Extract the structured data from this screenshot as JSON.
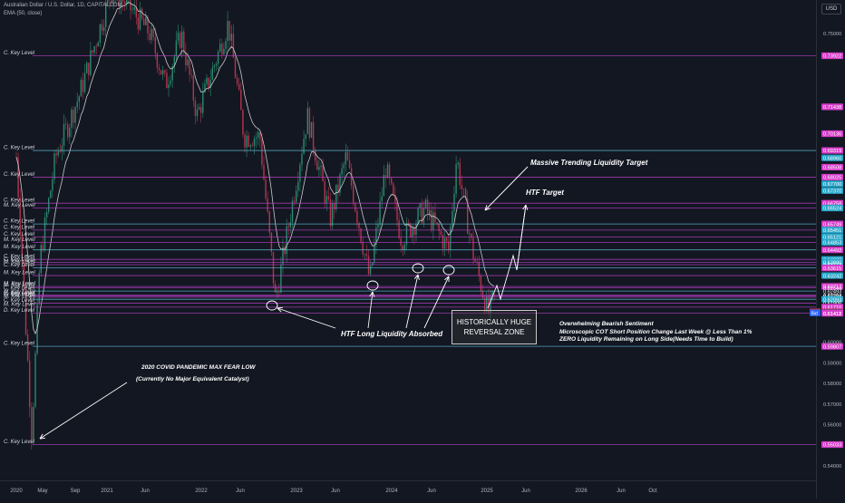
{
  "header": {
    "symbol": "Australian Dollar / U.S. Dollar, 1D, CAPITALCOM",
    "indicator": "EMA (50, close)",
    "currency_button": "USD"
  },
  "colors": {
    "background": "#131722",
    "level_line": "#b43ec2",
    "level_line_alt": "#5fb8d4",
    "bull_candle": "#2b8a6e",
    "bear_candle": "#b5344c",
    "ema": "#c9c9c9",
    "annotation": "#ffffff",
    "tag_pink": "#d63cc9",
    "tag_cyan": "#26a6c9",
    "ask": "#c2304a",
    "bid": "#2962ff"
  },
  "chart_data": {
    "type": "candlestick",
    "x_axis": {
      "ticks": [
        "2020",
        "May",
        "Sep",
        "2021",
        "Jun",
        "2022",
        "Jun",
        "2023",
        "Jun",
        "2024",
        "Jun",
        "2025",
        "Jun",
        "2026",
        "Jun",
        "Oct"
      ],
      "range": [
        "2020-01",
        "2026-10"
      ]
    },
    "y_axis": {
      "ticks": [
        "0.75000",
        "0.60000",
        "0.59000",
        "0.58000",
        "0.57000",
        "0.56000",
        "0.54000"
      ],
      "range": [
        0.535,
        0.765
      ]
    },
    "price_path": [
      [
        "2020-01",
        0.69
      ],
      [
        "2020-03",
        0.555
      ],
      [
        "2020-04",
        0.64
      ],
      [
        "2020-06",
        0.69
      ],
      [
        "2020-09",
        0.72
      ],
      [
        "2021-01",
        0.77
      ],
      [
        "2021-03",
        0.765
      ],
      [
        "2021-06",
        0.75
      ],
      [
        "2021-08",
        0.725
      ],
      [
        "2021-10",
        0.75
      ],
      [
        "2021-12",
        0.71
      ],
      [
        "2022-04",
        0.755
      ],
      [
        "2022-06",
        0.7
      ],
      [
        "2022-08",
        0.7
      ],
      [
        "2022-10",
        0.62
      ],
      [
        "2023-02",
        0.71
      ],
      [
        "2023-05",
        0.66
      ],
      [
        "2023-07",
        0.69
      ],
      [
        "2023-10",
        0.63
      ],
      [
        "2023-12",
        0.685
      ],
      [
        "2024-02",
        0.65
      ],
      [
        "2024-05",
        0.665
      ],
      [
        "2024-08",
        0.645
      ],
      [
        "2024-09",
        0.69
      ],
      [
        "2024-11",
        0.645
      ],
      [
        "2025-01",
        0.614
      ],
      [
        "2025-02",
        0.625
      ]
    ],
    "ema_period": 50,
    "key_levels": [
      {
        "label": "C. Key Level",
        "price": 0.73922
      },
      {
        "label": "C. Key Level",
        "price": 0.69319
      },
      {
        "label": "C. Key Level",
        "price": 0.68025
      },
      {
        "label": "C. Key Level",
        "price": 0.66758
      },
      {
        "label": "M. Key Level",
        "price": 0.66524
      },
      {
        "label": "C. Key Level",
        "price": 0.65749
      },
      {
        "label": "C. Key Level",
        "price": 0.65451
      },
      {
        "label": "C. Key Level",
        "price": 0.65121
      },
      {
        "label": "M. Key Level",
        "price": 0.64853
      },
      {
        "label": "M. Key Level",
        "price": 0.64492
      },
      {
        "label": "C. Key Level",
        "price": 0.6403
      },
      {
        "label": "C. Key Level",
        "price": 0.6389
      },
      {
        "label": "M. Key Level",
        "price": 0.63773
      },
      {
        "label": "C. Key Level",
        "price": 0.63615
      },
      {
        "label": "M. Key Level",
        "price": 0.63242
      },
      {
        "label": "M. Key Level",
        "price": 0.62717
      },
      {
        "label": "M. Key Level",
        "price": 0.62644
      },
      {
        "label": "C. Key Level",
        "price": 0.62493
      },
      {
        "label": "M. Key Level",
        "price": 0.62294
      },
      {
        "label": "C. Key Level",
        "price": 0.62263
      },
      {
        "label": "C. Key Level",
        "price": 0.62197
      },
      {
        "label": "M. Key Level",
        "price": 0.62093
      },
      {
        "label": "C. Key Level",
        "price": 0.61906
      },
      {
        "label": "M. Key Level",
        "price": 0.6171
      },
      {
        "label": "D. Key Level",
        "price": 0.61412
      },
      {
        "label": "C. Key Level",
        "price": 0.59807
      },
      {
        "label": "C. Key Level",
        "price": 0.55033
      }
    ],
    "price_tags": [
      {
        "text": "0.73922",
        "y": 0.73922,
        "bg": "pink"
      },
      {
        "text": "0.71438",
        "y": 0.71438,
        "bg": "pink"
      },
      {
        "text": "0.70136",
        "y": 0.70136,
        "bg": "pink"
      },
      {
        "text": "0.69319",
        "y": 0.69319,
        "bg": "pink"
      },
      {
        "text": "0.68960",
        "y": 0.6896,
        "bg": "cyan"
      },
      {
        "text": "0.68508",
        "y": 0.68508,
        "bg": "pink"
      },
      {
        "text": "0.68025",
        "y": 0.68025,
        "bg": "pink"
      },
      {
        "text": "0.67700",
        "y": 0.677,
        "bg": "cyan"
      },
      {
        "text": "0.67370",
        "y": 0.6737,
        "bg": "cyan"
      },
      {
        "text": "0.66758",
        "y": 0.66758,
        "bg": "pink"
      },
      {
        "text": "0.66524",
        "y": 0.66524,
        "bg": "cyan"
      },
      {
        "text": "0.65749",
        "y": 0.65749,
        "bg": "pink"
      },
      {
        "text": "0.65451",
        "y": 0.65451,
        "bg": "cyan"
      },
      {
        "text": "0.65121",
        "y": 0.65121,
        "bg": "cyan"
      },
      {
        "text": "0.64853",
        "y": 0.64853,
        "bg": "cyan"
      },
      {
        "text": "0.64492",
        "y": 0.64492,
        "bg": "pink"
      },
      {
        "text": "0.64030",
        "y": 0.6403,
        "bg": "cyan"
      },
      {
        "text": "0.63890",
        "y": 0.6389,
        "bg": "cyan"
      },
      {
        "text": "0.63773",
        "y": 0.63773,
        "bg": "none"
      },
      {
        "text": "0.63615",
        "y": 0.63615,
        "bg": "pink"
      },
      {
        "text": "0.63242",
        "y": 0.63242,
        "bg": "cyan"
      },
      {
        "text": "0.62717",
        "y": 0.62717,
        "bg": "pink"
      },
      {
        "text": "0.62644",
        "y": 0.62644,
        "bg": "none"
      },
      {
        "text": "0.62493",
        "y": 0.62493,
        "bg": "none"
      },
      {
        "text": "0.62294",
        "y": 0.62294,
        "bg": "none"
      },
      {
        "text": "0.62263",
        "y": 0.62263,
        "bg": "none"
      },
      {
        "text": "0.62197",
        "y": 0.62197,
        "bg": "none"
      },
      {
        "text": "0.62093",
        "y": 0.62093,
        "bg": "cyan"
      },
      {
        "text": "0.61906",
        "y": 0.61906,
        "bg": "none"
      },
      {
        "text": "0.61710",
        "y": 0.6171,
        "bg": "pink"
      },
      {
        "text": "0.61482",
        "y": 0.61482,
        "bg": "ask",
        "prefix": "Ask"
      },
      {
        "text": "0.61432",
        "y": 0.61432,
        "bg": "bid",
        "prefix": "Bid"
      },
      {
        "text": "0.61412",
        "y": 0.61412,
        "bg": "pink"
      },
      {
        "text": "0.61411",
        "y": 0.61411,
        "bg": "none"
      },
      {
        "text": "0.59807",
        "y": 0.59807,
        "bg": "pink"
      },
      {
        "text": "0.55033",
        "y": 0.55033,
        "bg": "pink"
      }
    ]
  },
  "annotations": {
    "massive_target": "Massive Trending Liquidity Target",
    "htf_target": "HTF Target",
    "htf_absorbed": "HTF Long Liquidity Absorbed",
    "zone_line1": "HISTORICALLY HUGE",
    "zone_line2": "REVERSAL ZONE",
    "note_line1": "Overwhelming Bearish Sentiment",
    "note_line2": "Microscopic COT Short Position Change Last Week @ Less Than 1%",
    "note_line3": "ZERO Liquidity Remaining on Long Side(Needs Time to Build)",
    "covid_line1": "2020 COVID PANDEMIC MAX FEAR LOW",
    "covid_line2": "(Currently No Major Equivalent Catalyst)"
  }
}
